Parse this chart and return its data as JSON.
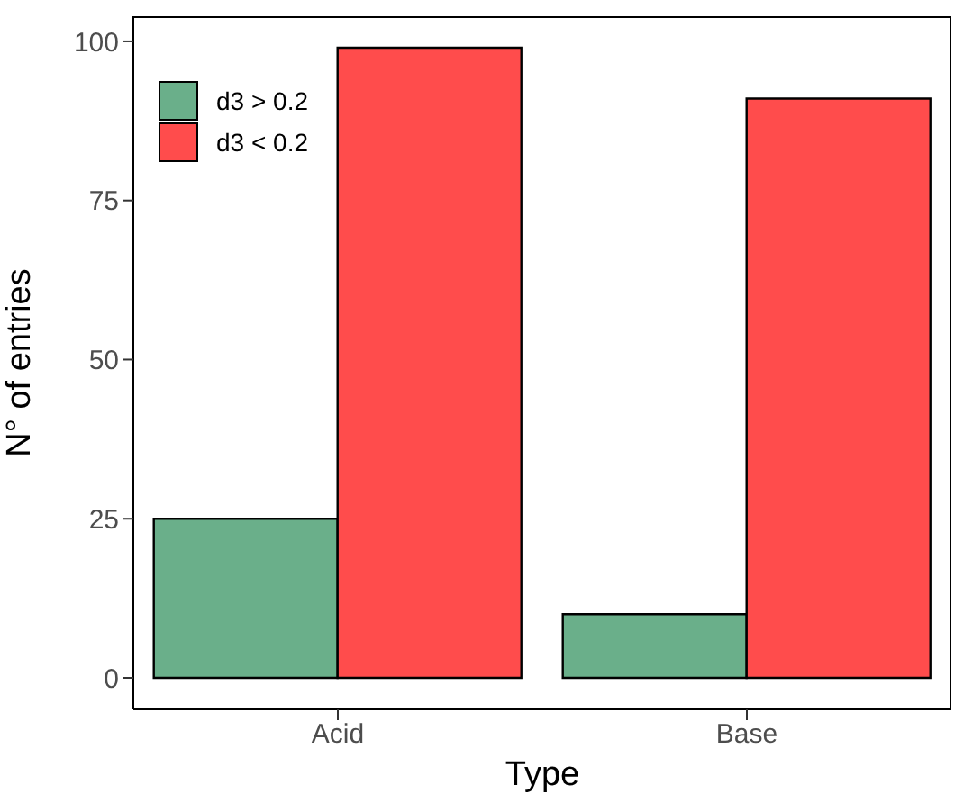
{
  "chart_data": {
    "type": "bar",
    "xlabel": "Type",
    "ylabel": "N° of entries",
    "categories": [
      "Acid",
      "Base"
    ],
    "series": [
      {
        "name": "d3 > 0.2",
        "color": "#6aaf8a",
        "values": [
          25,
          10
        ]
      },
      {
        "name": "d3 < 0.2",
        "color": "#ff4c4c",
        "values": [
          99,
          91
        ]
      }
    ],
    "ylim": [
      -4.95,
      103.95
    ],
    "yticks": [
      0,
      25,
      50,
      75,
      100
    ],
    "grid": false,
    "legend": "top left"
  }
}
